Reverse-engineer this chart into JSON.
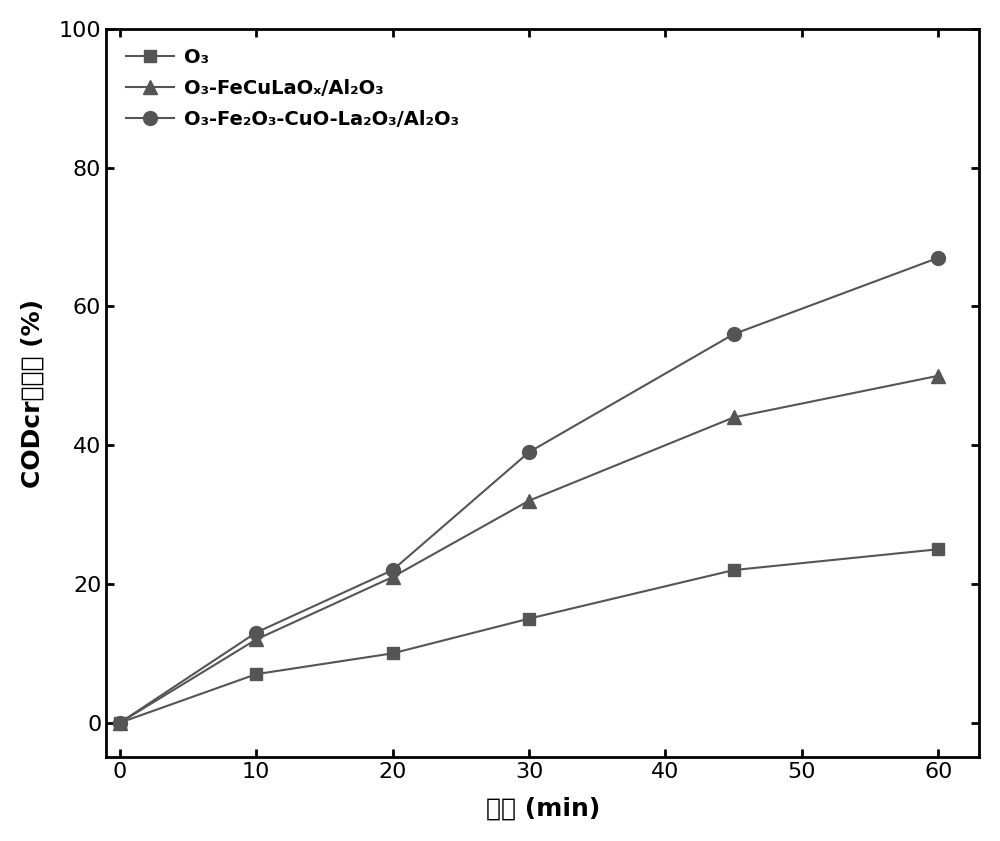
{
  "x": [
    0,
    10,
    20,
    30,
    45,
    60
  ],
  "series": [
    {
      "label_parts": [
        "O",
        "3",
        "",
        ""
      ],
      "values": [
        0,
        7,
        10,
        15,
        22,
        25
      ],
      "color": "#555555",
      "marker": "s",
      "markersize": 9
    },
    {
      "label_parts": [
        "O",
        "3",
        "-FeCuLaO",
        "x/Al₂O₃"
      ],
      "values": [
        0,
        12,
        21,
        32,
        44,
        50
      ],
      "color": "#555555",
      "marker": "^",
      "markersize": 10
    },
    {
      "label_parts": [
        "O",
        "3",
        "-Fe₂O₃-CuO-La₂O₃/Al₂O₃",
        ""
      ],
      "values": [
        0,
        13,
        22,
        39,
        56,
        67
      ],
      "color": "#555555",
      "marker": "o",
      "markersize": 10
    }
  ],
  "labels": [
    "O₃",
    "O₃-FeCuLaOₓ/Al₂O₃",
    "O₃-Fe₂O₃-CuO-La₂O₃/Al₂O₃"
  ],
  "xlabel_cn": "时间",
  "xlabel_unit": " (min)",
  "ylabel_start": "CODcr",
  "ylabel_cn": "去除率",
  "ylabel_unit": " (%)",
  "xlim": [
    -1,
    63
  ],
  "ylim": [
    -5,
    100
  ],
  "xticks": [
    0,
    10,
    20,
    30,
    40,
    50,
    60
  ],
  "yticks": [
    0,
    20,
    40,
    60,
    80,
    100
  ],
  "legend_loc": "upper left",
  "linewidth": 1.5,
  "figsize": [
    10.0,
    8.41
  ],
  "dpi": 100
}
